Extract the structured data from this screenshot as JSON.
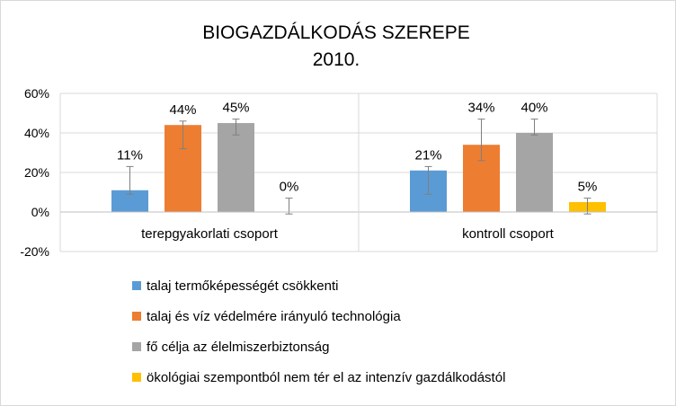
{
  "chart_data": {
    "type": "bar",
    "title": [
      "BIOGAZDÁLKODÁS SZEREPE",
      "2010."
    ],
    "categories": [
      "terepgyakorlati csoport",
      "kontroll csoport"
    ],
    "ylim": [
      -20,
      60
    ],
    "yticks": [
      -20,
      0,
      20,
      40,
      60
    ],
    "ytick_labels": [
      "-20%",
      "0%",
      "20%",
      "40%",
      "60%"
    ],
    "series": [
      {
        "name": "talaj termőképességét csökkenti",
        "color": "#5b9bd5",
        "values": [
          11,
          21
        ],
        "labels": [
          "11%",
          "21%"
        ],
        "err_low": [
          9,
          9
        ],
        "err_high": [
          23,
          23
        ]
      },
      {
        "name": "talaj és víz védelmére irányuló technológia",
        "color": "#ed7d31",
        "values": [
          44,
          34
        ],
        "labels": [
          "44%",
          "34%"
        ],
        "err_low": [
          32,
          26
        ],
        "err_high": [
          46,
          47
        ]
      },
      {
        "name": "fő célja az élelmiszerbiztonság",
        "color": "#a5a5a5",
        "values": [
          45,
          40
        ],
        "labels": [
          "45%",
          "40%"
        ],
        "err_low": [
          39,
          39
        ],
        "err_high": [
          47,
          47
        ]
      },
      {
        "name": "ökológiai szempontból nem tér el az intenzív gazdálkodástól",
        "color": "#ffc000",
        "values": [
          0,
          5
        ],
        "labels": [
          "0%",
          "5%"
        ],
        "err_low": [
          -1,
          -1
        ],
        "err_high": [
          7,
          7
        ]
      }
    ],
    "legend_position": "bottom-left",
    "grid": true
  }
}
